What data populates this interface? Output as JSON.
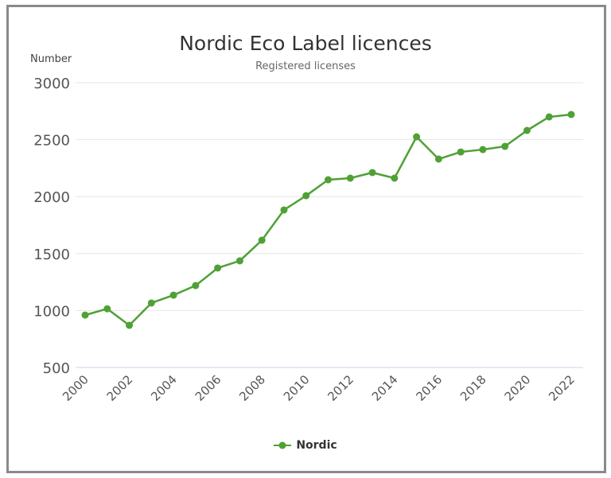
{
  "chart_data": {
    "type": "line",
    "title": "Nordic Eco Label licences",
    "subtitle": "Registered licenses",
    "ylabel": "Number",
    "xlabel": "",
    "ylim": [
      500,
      3000
    ],
    "yticks": [
      "500",
      "1000",
      "1500",
      "2000",
      "2500",
      "3000"
    ],
    "xticks": [
      "2000",
      "2002",
      "2004",
      "2006",
      "2008",
      "2010",
      "2012",
      "2014",
      "2016",
      "2018",
      "2020",
      "2022"
    ],
    "x": [
      2000,
      2001,
      2002,
      2003,
      2004,
      2005,
      2006,
      2007,
      2008,
      2009,
      2010,
      2011,
      2012,
      2013,
      2014,
      2015,
      2016,
      2017,
      2018,
      2019,
      2020,
      2021,
      2022
    ],
    "series": [
      {
        "name": "Nordic",
        "color": "#4fa136",
        "values": [
          960,
          1015,
          870,
          1066,
          1135,
          1219,
          1373,
          1436,
          1617,
          1883,
          2008,
          2148,
          2162,
          2211,
          2162,
          2525,
          2330,
          2392,
          2413,
          2441,
          2581,
          2700,
          2721
        ]
      }
    ],
    "grid": true,
    "legend": "bottom-center"
  }
}
